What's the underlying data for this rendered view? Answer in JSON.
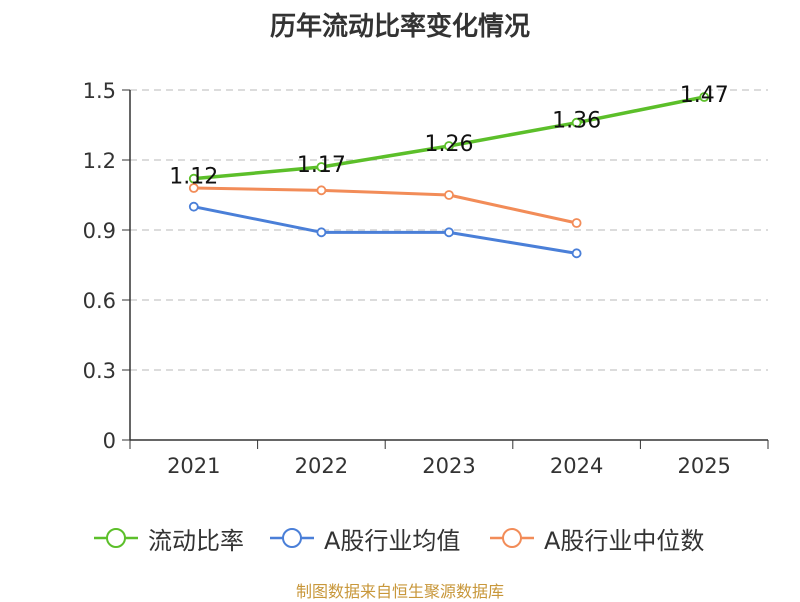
{
  "chart_data": {
    "type": "line",
    "title": "历年流动比率变化情况",
    "categories": [
      "2021",
      "2022",
      "2023",
      "2024",
      "2025"
    ],
    "ylim": [
      0,
      1.5
    ],
    "yticks": [
      0,
      0.3,
      0.6,
      0.9,
      1.2,
      1.5
    ],
    "ytick_labels": [
      "0",
      "0.3",
      "0.6",
      "0.9",
      "1.2",
      "1.5"
    ],
    "grid": true,
    "legend_position": "bottom",
    "series": [
      {
        "name": "流动比率",
        "color": "#5cbf2a",
        "values": [
          1.12,
          1.17,
          1.26,
          1.36,
          1.47
        ],
        "labels": [
          "1.12",
          "1.17",
          "1.26",
          "1.36",
          "1.47"
        ]
      },
      {
        "name": "A股行业均值",
        "color": "#4a7fd8",
        "values": [
          1.0,
          0.89,
          0.89,
          0.8,
          null
        ]
      },
      {
        "name": "A股行业中位数",
        "color": "#f28c58",
        "values": [
          1.08,
          1.07,
          1.05,
          0.93,
          null
        ]
      }
    ]
  },
  "source": "制图数据来自恒生聚源数据库"
}
